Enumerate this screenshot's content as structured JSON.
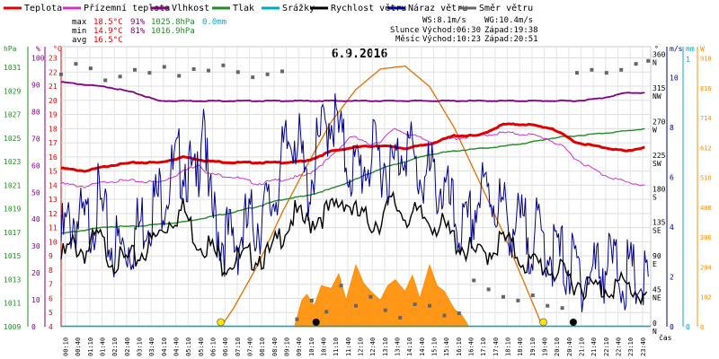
{
  "chart_data": {
    "type": "line",
    "title": "6.9.2016",
    "legend": [
      {
        "label": "Teplota",
        "color": "#e00000"
      },
      {
        "label": "Přízemní teplota",
        "color": "#cc33cc"
      },
      {
        "label": "Vlhkost",
        "color": "#800080"
      },
      {
        "label": "Tlak",
        "color": "#228b22"
      },
      {
        "label": "Srážky",
        "color": "#00a8c8"
      },
      {
        "label": "Rychlost větru",
        "color": "#000000"
      },
      {
        "label": "Náraz větru",
        "color": "#00008b"
      },
      {
        "label": "Směr větru",
        "color": "#666666"
      }
    ],
    "stats": {
      "max_label": "max",
      "min_label": "min",
      "avg_label": "avg",
      "max_temp": "18.5°C",
      "max_hum": "91%",
      "max_press": "1025.8hPa",
      "max_rain": "0.0mm",
      "min_temp": "14.9°C",
      "min_hum": "81%",
      "min_press": "1016.9hPa",
      "avg_temp": "16.5°C",
      "ws": "WS:8.1m/s",
      "wg": "WG:10.4m/s",
      "sun_label": "Slunce",
      "sunrise": "Východ:06:30",
      "sunset": "Západ:19:38",
      "moon_label": "Měsíc",
      "moonrise": "Východ:10:23",
      "moonset": "Západ:20:51"
    },
    "axes": {
      "hpa_title": "hPa",
      "hum_title": "%",
      "temp_title": "°C",
      "wind_title": "m/s",
      "rain_title": "mm",
      "solar_title": "W",
      "dir_title": "°",
      "x_title": "čas",
      "hpa_ticks": [
        "1031",
        "1029",
        "1027",
        "1025",
        "1023",
        "1021",
        "1019",
        "1017",
        "1015",
        "1013",
        "1011",
        "1009"
      ],
      "hum_ticks": [
        "100",
        "90",
        "80",
        "70",
        "60",
        "50",
        "40",
        "30",
        "20",
        "10",
        "0"
      ],
      "temp_ticks": [
        "23",
        "22",
        "21",
        "20",
        "19",
        "18",
        "17",
        "16",
        "15",
        "14",
        "13",
        "12",
        "11",
        "10",
        "9",
        "8",
        "7",
        "6",
        "5",
        "4"
      ],
      "wind_ticks": [
        "10",
        "8",
        "6",
        "4",
        "2",
        "0"
      ],
      "rain_ticks": [
        "1",
        "0"
      ],
      "solar_ticks": [
        "918",
        "816",
        "714",
        "612",
        "510",
        "408",
        "306",
        "204",
        "102",
        "0"
      ],
      "dir_ticks": [
        {
          "deg": "360",
          "label": "N"
        },
        {
          "deg": "315",
          "label": "NW"
        },
        {
          "deg": "270",
          "label": "W"
        },
        {
          "deg": "225",
          "label": "SW"
        },
        {
          "deg": "180",
          "label": "S"
        },
        {
          "deg": "135",
          "label": "SE"
        },
        {
          "deg": "90",
          "label": "E"
        },
        {
          "deg": "45",
          "label": "NE"
        },
        {
          "deg": "0",
          "label": "N"
        }
      ],
      "time_ticks": [
        "00:10",
        "00:40",
        "01:10",
        "01:40",
        "02:10",
        "02:40",
        "03:10",
        "03:40",
        "04:10",
        "04:40",
        "05:10",
        "05:40",
        "06:10",
        "06:40",
        "07:10",
        "07:40",
        "08:10",
        "08:40",
        "09:10",
        "09:40",
        "10:10",
        "10:40",
        "11:10",
        "11:40",
        "12:10",
        "12:40",
        "13:10",
        "13:40",
        "14:10",
        "14:40",
        "15:10",
        "15:40",
        "16:10",
        "16:40",
        "17:10",
        "17:40",
        "18:10",
        "18:40",
        "19:10",
        "19:40",
        "20:10",
        "20:40",
        "21:10",
        "21:40",
        "22:10",
        "22:40",
        "23:10",
        "23:40"
      ]
    },
    "series": {
      "temperature": {
        "unit": "°C",
        "x": [
          0,
          1,
          2,
          3,
          4,
          5,
          6,
          7,
          8,
          9,
          10,
          11,
          12,
          13,
          14,
          15,
          16,
          17,
          18,
          19,
          20,
          21,
          22,
          23,
          23.8
        ],
        "y": [
          15.2,
          15.0,
          15.4,
          15.6,
          15.6,
          16.0,
          15.7,
          15.6,
          15.6,
          15.6,
          15.7,
          16.4,
          16.7,
          16.8,
          16.6,
          16.9,
          17.5,
          17.5,
          18.3,
          18.3,
          18.0,
          17.0,
          16.7,
          16.4,
          16.7
        ]
      },
      "ground_temperature": {
        "unit": "°C",
        "x": [
          0,
          1,
          2,
          3,
          4,
          5,
          5.6,
          6,
          7,
          8,
          9,
          10,
          11,
          11.8,
          12.5,
          13,
          13.6,
          14,
          15,
          16,
          17,
          18,
          19,
          19.8,
          20.5,
          21,
          22,
          23,
          23.8
        ],
        "y": [
          14.1,
          13.9,
          14.3,
          14.3,
          14.2,
          15.0,
          15.5,
          14.8,
          14.6,
          14.1,
          14.4,
          14.7,
          16.0,
          17.5,
          16.9,
          17.1,
          18.0,
          17.7,
          17.1,
          17.3,
          17.5,
          17.7,
          17.6,
          17.3,
          16.6,
          15.8,
          14.8,
          14.2,
          14.0
        ]
      },
      "humidity": {
        "unit": "%",
        "x": [
          0,
          1,
          2,
          3,
          4,
          5,
          6,
          7,
          8,
          9,
          10,
          11,
          12,
          13,
          14,
          15,
          16,
          17,
          18,
          19,
          20,
          21,
          22,
          23,
          23.8
        ],
        "y": [
          91,
          90,
          89,
          87,
          84,
          84,
          84,
          84,
          84,
          84,
          84,
          84,
          84,
          84,
          84,
          84,
          84,
          84,
          84,
          84,
          84,
          84,
          85,
          87,
          87
        ]
      },
      "pressure": {
        "unit": "hPa",
        "x": [
          0,
          1,
          2,
          3,
          4,
          5,
          6,
          7,
          8,
          9,
          10,
          11,
          12,
          13,
          14,
          15,
          16,
          17,
          18,
          19,
          20,
          21,
          22,
          23,
          23.8
        ],
        "y": [
          1016.9,
          1017.2,
          1017.5,
          1017.5,
          1017.7,
          1017.9,
          1018.3,
          1018.7,
          1019.2,
          1019.8,
          1020.1,
          1020.7,
          1021.5,
          1022.4,
          1023.0,
          1023.6,
          1023.9,
          1024.1,
          1024.3,
          1024.6,
          1025.0,
          1025.2,
          1025.4,
          1025.6,
          1025.8
        ]
      },
      "rain": {
        "unit": "mm",
        "total": 0.0
      },
      "wind_speed": {
        "unit": "m/s",
        "x": [
          0,
          0.5,
          1,
          1.5,
          2,
          2.5,
          3,
          3.5,
          4,
          4.5,
          5,
          5.5,
          6,
          6.5,
          7,
          7.5,
          8,
          8.5,
          9,
          9.5,
          10,
          10.5,
          11,
          11.5,
          12,
          12.5,
          13,
          13.5,
          14,
          14.5,
          15,
          15.5,
          16,
          16.5,
          17,
          17.5,
          18,
          18.5,
          19,
          19.5,
          20,
          20.5,
          21,
          21.5,
          22,
          22.5,
          23,
          23.5,
          23.9
        ],
        "y": [
          2.7,
          3.3,
          3.0,
          3.6,
          2.8,
          2.6,
          2.7,
          3.2,
          3.7,
          4.4,
          4.7,
          3.5,
          3.3,
          2.6,
          2.7,
          2.7,
          2.9,
          2.8,
          3.8,
          4.5,
          4.1,
          4.5,
          4.6,
          5.2,
          4.5,
          4.2,
          4.3,
          5.0,
          4.5,
          4.4,
          4.3,
          4.0,
          3.5,
          3.1,
          2.8,
          3.1,
          3.5,
          3.0,
          2.5,
          2.5,
          2.3,
          2.0,
          1.8,
          1.6,
          1.5,
          1.7,
          1.6,
          1.4,
          1.2
        ]
      },
      "wind_gust": {
        "unit": "m/s",
        "x": [
          0,
          0.5,
          1,
          1.5,
          2,
          2.5,
          3,
          3.5,
          4,
          4.5,
          5,
          5.5,
          5.8,
          6,
          6.5,
          7,
          7.5,
          8,
          8.5,
          9,
          9.5,
          10,
          10.5,
          11,
          11.5,
          12,
          12.5,
          13,
          13.5,
          14,
          14.5,
          15,
          15.5,
          16,
          16.5,
          17,
          17.5,
          18,
          18.5,
          19,
          19.5,
          20,
          20.5,
          21,
          21.5,
          22,
          22.5,
          23,
          23.5,
          23.9
        ],
        "y": [
          3.4,
          4.4,
          3.9,
          5.0,
          3.3,
          3.1,
          3.7,
          4.6,
          5.2,
          6.0,
          6.8,
          5.3,
          9.6,
          4.8,
          3.7,
          3.3,
          3.9,
          4.3,
          4.7,
          6.5,
          8.1,
          5.4,
          7.2,
          8.7,
          7.0,
          6.1,
          6.7,
          6.8,
          6.2,
          7.6,
          6.1,
          6.0,
          5.6,
          4.3,
          3.6,
          5.2,
          5.4,
          4.5,
          4.0,
          3.7,
          3.6,
          3.0,
          2.6,
          2.2,
          2.0,
          2.5,
          2.4,
          2.0,
          1.8,
          1.6
        ]
      },
      "wind_direction": {
        "unit": "°",
        "x": [
          0,
          0.6,
          1.2,
          1.8,
          2.4,
          3,
          3.6,
          4.2,
          4.8,
          5.4,
          6,
          6.6,
          7.2,
          7.8,
          8.4,
          9,
          9.6,
          10.2,
          10.8,
          11.4,
          12,
          12.6,
          13.2,
          13.8,
          14.4,
          15,
          15.6,
          16.2,
          16.8,
          17.4,
          18,
          18.6,
          19.2,
          19.8,
          20.4,
          21,
          21.6,
          22.2,
          22.8,
          23.4,
          23.9
        ],
        "y": [
          338,
          352,
          346,
          330,
          335,
          344,
          340,
          348,
          336,
          345,
          343,
          350,
          341,
          334,
          338,
          342,
          10,
          35,
          20,
          55,
          28,
          40,
          22,
          12,
          30,
          28,
          15,
          18,
          62,
          50,
          40,
          35,
          42,
          28,
          25,
          340,
          344,
          340,
          344,
          352,
          356
        ]
      },
      "solar_radiation": {
        "unit": "W",
        "x": [
          9.5,
          9.8,
          10,
          10.3,
          10.6,
          11,
          11.3,
          11.6,
          12,
          12.3,
          12.6,
          13,
          13.3,
          13.6,
          14,
          14.3,
          14.6,
          15,
          15.3,
          15.6,
          16,
          16.3,
          16.6
        ],
        "y": [
          0,
          90,
          110,
          70,
          140,
          130,
          180,
          90,
          210,
          150,
          120,
          90,
          140,
          160,
          120,
          175,
          95,
          210,
          140,
          120,
          60,
          40,
          0
        ]
      },
      "solar_theoretical": {
        "unit": "W",
        "x": [
          6.5,
          7,
          8,
          9,
          10,
          11,
          12,
          13,
          14,
          15,
          16,
          17,
          18,
          19,
          19.6
        ],
        "y": [
          0,
          60,
          210,
          390,
          550,
          700,
          810,
          880,
          890,
          820,
          680,
          500,
          320,
          120,
          0
        ]
      }
    },
    "sun_moon_markers": [
      {
        "kind": "sunrise",
        "time": 6.5
      },
      {
        "kind": "moonrise",
        "time": 10.38
      },
      {
        "kind": "sunset",
        "time": 19.63
      },
      {
        "kind": "moonset",
        "time": 20.85
      }
    ],
    "colors": {
      "temperature": "#e00000",
      "ground_temperature": "#cc33cc",
      "humidity": "#800080",
      "pressure": "#228b22",
      "rain": "#00a8c8",
      "wind_speed": "#000000",
      "wind_gust": "#00008b",
      "wind_direction": "#666666",
      "solar": "#ff8c00",
      "solar_theoretical": "#e07000",
      "sun_marker": "#ffe800",
      "moon_marker": "#000000",
      "hpa_axis": "#228b22",
      "hum_axis": "#800080",
      "temp_axis": "#e00000",
      "wind_axis": "#00008b",
      "rain_axis": "#00a8c8",
      "solar_axis": "#ff8c00"
    }
  }
}
